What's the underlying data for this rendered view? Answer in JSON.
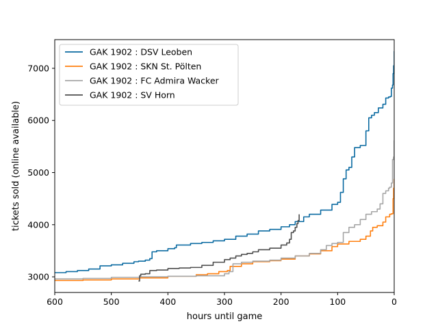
{
  "chart_data": {
    "type": "line",
    "title": "",
    "xlabel": "hours until game",
    "ylabel": "tickets sold (online available)",
    "xlim": [
      600,
      0
    ],
    "ylim": [
      2700,
      7550
    ],
    "x_reversed": true,
    "xticks": [
      600,
      500,
      400,
      300,
      200,
      100,
      0
    ],
    "yticks": [
      3000,
      4000,
      5000,
      6000,
      7000
    ],
    "legend_position": "top-left",
    "grid": false,
    "series": [
      {
        "name": "GAK 1902 : DSV Leoben",
        "color": "#0a6aa1",
        "x": [
          600,
          580,
          560,
          540,
          520,
          500,
          480,
          460,
          452,
          450,
          440,
          432,
          428,
          420,
          400,
          388,
          385,
          360,
          340,
          320,
          300,
          280,
          260,
          240,
          220,
          200,
          185,
          175,
          160,
          150,
          130,
          110,
          100,
          95,
          90,
          85,
          80,
          75,
          70,
          60,
          50,
          45,
          40,
          35,
          28,
          20,
          15,
          10,
          7,
          5,
          3,
          2,
          1,
          0
        ],
        "y": [
          3080,
          3100,
          3120,
          3150,
          3210,
          3230,
          3260,
          3290,
          3300,
          3300,
          3320,
          3350,
          3480,
          3500,
          3540,
          3560,
          3610,
          3640,
          3660,
          3690,
          3720,
          3780,
          3820,
          3880,
          3910,
          3960,
          4000,
          4060,
          4150,
          4200,
          4280,
          4390,
          4430,
          4620,
          4880,
          5050,
          5100,
          5300,
          5480,
          5520,
          5800,
          6050,
          6100,
          6150,
          6240,
          6310,
          6430,
          6450,
          6460,
          6620,
          6680,
          6900,
          7050,
          7330
        ]
      },
      {
        "name": "GAK 1902 : SKN St. Pölten",
        "color": "#ff7f0e",
        "x": [
          600,
          550,
          500,
          450,
          400,
          350,
          330,
          310,
          295,
          290,
          270,
          250,
          220,
          200,
          175,
          150,
          130,
          110,
          100,
          80,
          60,
          50,
          42,
          38,
          30,
          20,
          15,
          8,
          5,
          2,
          1,
          0
        ],
        "y": [
          2930,
          2940,
          2960,
          2980,
          3010,
          3040,
          3060,
          3100,
          3120,
          3200,
          3250,
          3290,
          3310,
          3340,
          3400,
          3440,
          3500,
          3580,
          3630,
          3680,
          3720,
          3780,
          3880,
          3950,
          3980,
          4050,
          4150,
          4200,
          4210,
          4500,
          4700,
          4880
        ]
      },
      {
        "name": "GAK 1902 : FC Admira Wacker",
        "color": "#a6a6a6",
        "x": [
          600,
          550,
          500,
          450,
          400,
          350,
          300,
          292,
          285,
          270,
          250,
          220,
          200,
          175,
          150,
          130,
          120,
          110,
          100,
          90,
          80,
          70,
          60,
          50,
          40,
          30,
          25,
          20,
          15,
          10,
          8,
          5,
          3,
          1,
          0
        ],
        "y": [
          2960,
          2970,
          2990,
          3000,
          3010,
          3020,
          3060,
          3100,
          3250,
          3280,
          3300,
          3320,
          3360,
          3400,
          3450,
          3520,
          3600,
          3640,
          3660,
          3850,
          3950,
          4000,
          4100,
          4200,
          4250,
          4300,
          4400,
          4600,
          4650,
          4700,
          4720,
          4800,
          5250,
          5300,
          5620
        ]
      },
      {
        "name": "GAK 1902 : SV Horn",
        "color": "#4d4d4d",
        "x": [
          452,
          450,
          448,
          440,
          432,
          420,
          400,
          380,
          360,
          340,
          320,
          300,
          290,
          280,
          270,
          260,
          250,
          240,
          220,
          200,
          190,
          185,
          182,
          178,
          175,
          172,
          170,
          168
        ],
        "y": [
          2920,
          3020,
          3050,
          3060,
          3120,
          3130,
          3160,
          3170,
          3180,
          3220,
          3280,
          3330,
          3360,
          3400,
          3430,
          3450,
          3480,
          3520,
          3550,
          3610,
          3650,
          3720,
          3850,
          3880,
          3950,
          4020,
          4080,
          4200
        ]
      }
    ]
  }
}
